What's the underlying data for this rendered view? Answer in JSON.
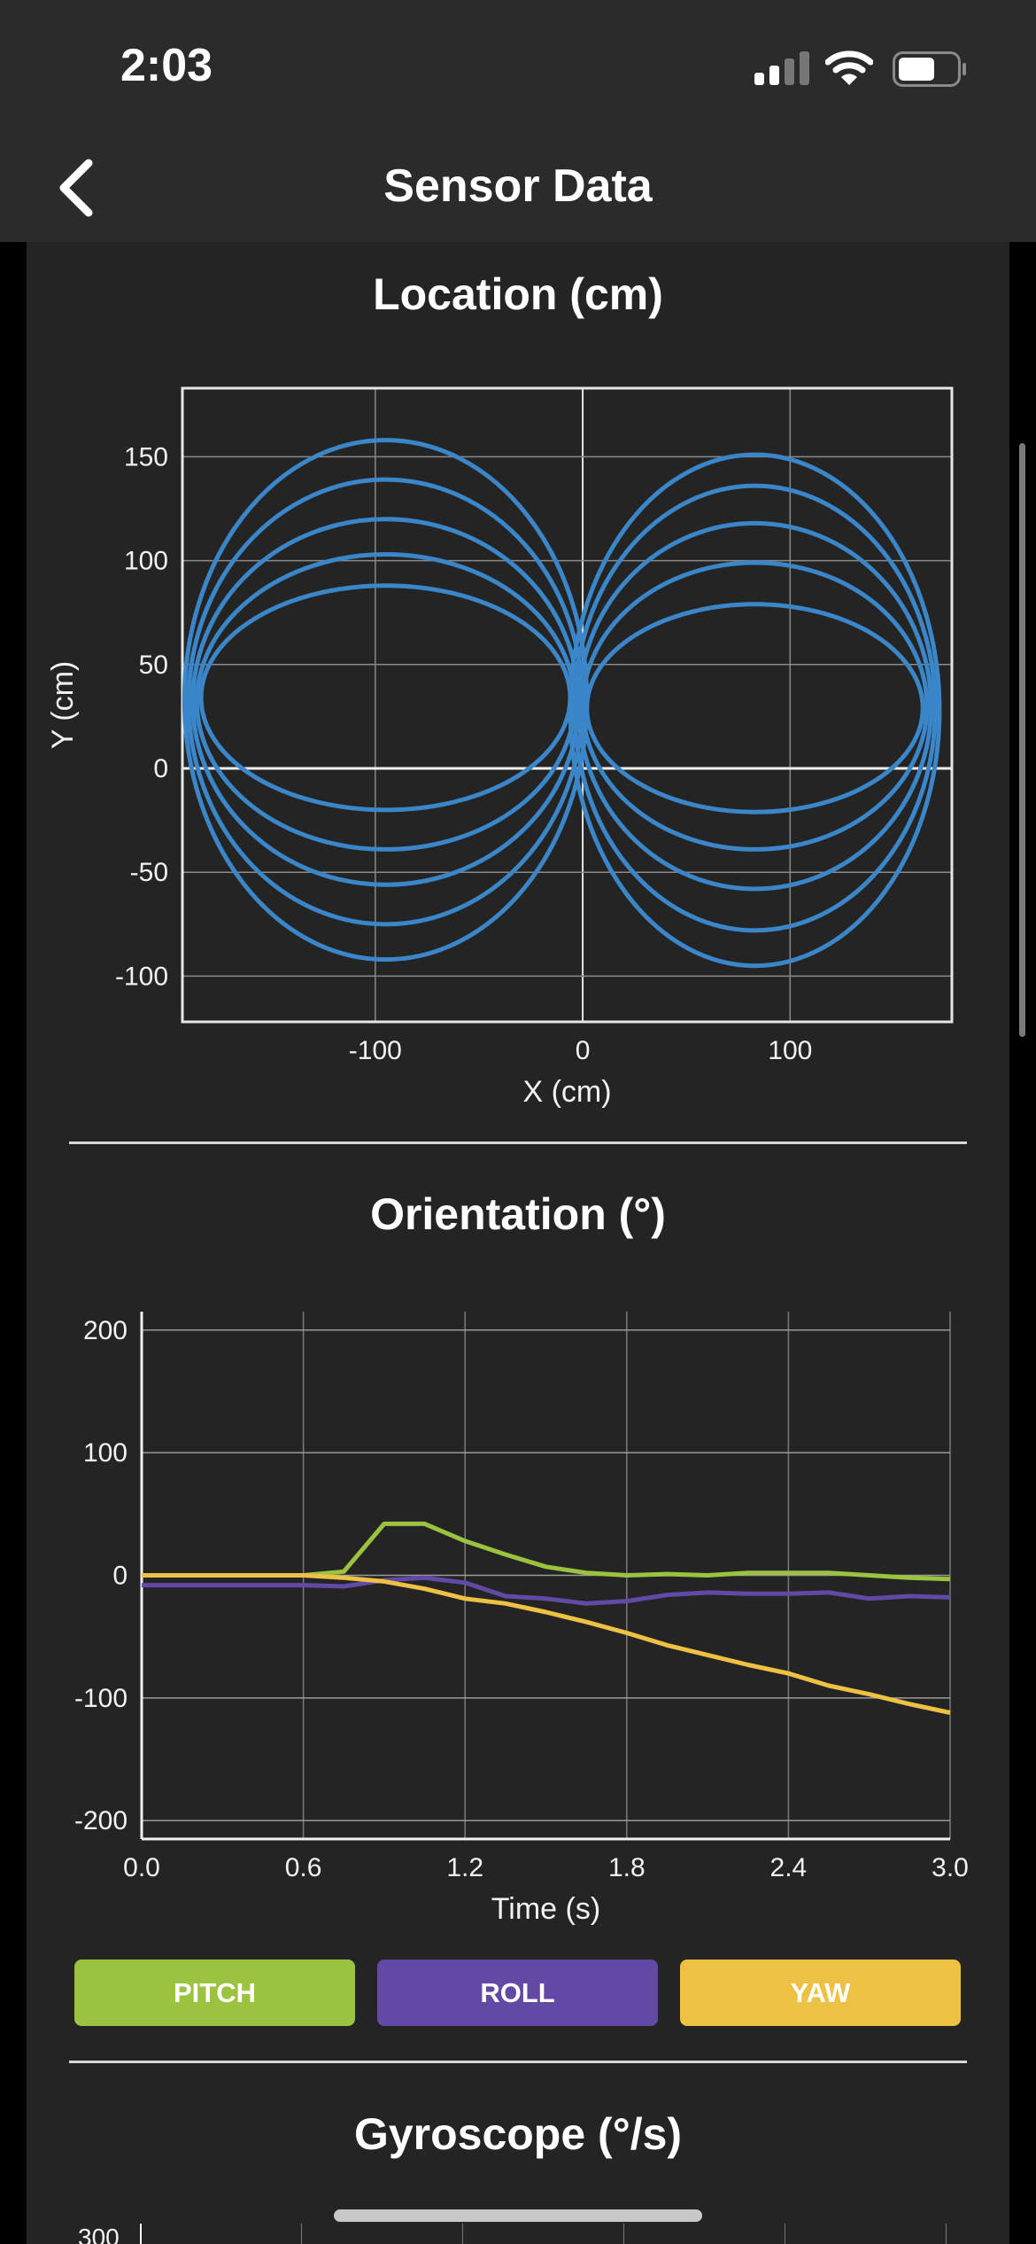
{
  "status": {
    "time": "2:03"
  },
  "nav": {
    "title": "Sensor Data",
    "back_icon": "chevron-left-icon"
  },
  "sections": {
    "location_title": "Location (cm)",
    "orientation_title": "Orientation (°)",
    "gyroscope_title": "Gyroscope (°/s)"
  },
  "legend": {
    "pitch": "PITCH",
    "roll": "ROLL",
    "yaw": "YAW"
  },
  "colors": {
    "location": "#3a86c8",
    "pitch": "#9bc33f",
    "roll": "#6249a6",
    "yaw": "#edc144"
  },
  "chart_data": [
    {
      "type": "line",
      "title": "Location (cm)",
      "xlabel": "X (cm)",
      "ylabel": "Y (cm)",
      "xlim": [
        -193,
        178
      ],
      "ylim": [
        -122,
        183
      ],
      "xticks": [
        -100,
        0,
        100
      ],
      "yticks": [
        150,
        100,
        50,
        0,
        -50,
        -100
      ],
      "grid": true,
      "series": [
        {
          "loops": [
            {
              "cx": -95,
              "cy": 34,
              "rx": 89,
              "ry": 54
            },
            {
              "cx": -95,
              "cy": 32,
              "rx": 91,
              "ry": 71
            },
            {
              "cx": -95,
              "cy": 32,
              "rx": 93,
              "ry": 88
            },
            {
              "cx": -95,
              "cy": 32,
              "rx": 95,
              "ry": 107
            },
            {
              "cx": -95,
              "cy": 33,
              "rx": 97,
              "ry": 125
            },
            {
              "cx": 83,
              "cy": 29,
              "rx": 81,
              "ry": 50
            },
            {
              "cx": 83,
              "cy": 30,
              "rx": 83,
              "ry": 69
            },
            {
              "cx": 83,
              "cy": 30,
              "rx": 85,
              "ry": 88
            },
            {
              "cx": 83,
              "cy": 29,
              "rx": 87,
              "ry": 107
            },
            {
              "cx": 83,
              "cy": 28,
              "rx": 89,
              "ry": 123
            }
          ]
        }
      ]
    },
    {
      "type": "line",
      "title": "Orientation (°)",
      "xlabel": "Time (s)",
      "ylabel": "",
      "xlim": [
        0,
        3.0
      ],
      "ylim": [
        -215,
        215
      ],
      "xticks": [
        "0.0",
        "0.6",
        "1.2",
        "1.8",
        "2.4",
        "3.0"
      ],
      "yticks": [
        200,
        100,
        0,
        -100,
        -200
      ],
      "grid": true,
      "series": [
        {
          "name": "PITCH",
          "x": [
            0,
            0.3,
            0.6,
            0.75,
            0.9,
            1.05,
            1.2,
            1.35,
            1.5,
            1.65,
            1.8,
            1.95,
            2.1,
            2.25,
            2.4,
            2.55,
            2.7,
            2.85,
            3.0
          ],
          "y": [
            0,
            0,
            0,
            3,
            42,
            42,
            28,
            17,
            7,
            2,
            0,
            1,
            0,
            2,
            2,
            2,
            0,
            -2,
            -3
          ]
        },
        {
          "name": "ROLL",
          "x": [
            0,
            0.3,
            0.6,
            0.75,
            0.9,
            1.05,
            1.2,
            1.35,
            1.5,
            1.65,
            1.8,
            1.95,
            2.1,
            2.25,
            2.4,
            2.55,
            2.7,
            2.85,
            3.0
          ],
          "y": [
            -8,
            -8,
            -8,
            -9,
            -4,
            -2,
            -6,
            -17,
            -19,
            -23,
            -21,
            -16,
            -14,
            -15,
            -15,
            -14,
            -19,
            -17,
            -18
          ]
        },
        {
          "name": "YAW",
          "x": [
            0,
            0.3,
            0.6,
            0.75,
            0.9,
            1.05,
            1.2,
            1.35,
            1.5,
            1.65,
            1.8,
            1.95,
            2.1,
            2.25,
            2.4,
            2.55,
            2.7,
            2.85,
            3.0
          ],
          "y": [
            0,
            0,
            0,
            -2,
            -5,
            -11,
            -19,
            -23,
            -30,
            -38,
            -47,
            -57,
            -65,
            -73,
            -80,
            -90,
            -97,
            -105,
            -112
          ]
        }
      ]
    }
  ],
  "gyro_partial_tick": "300"
}
